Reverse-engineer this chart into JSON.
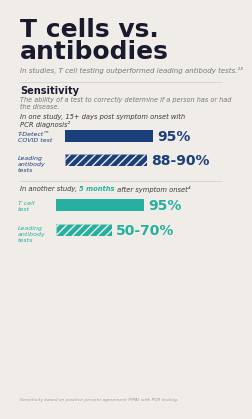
{
  "bg_color": "#f0ede8",
  "title_line1": "T cells vs.",
  "title_line2": "antibodies",
  "subtitle": "In studies, T cell testing outperformed leading antibody tests.¹³",
  "sensitivity_header": "Sensitivity",
  "sensitivity_desc": "The ability of a test to correctly determine if a person has or had\nthe disease.",
  "study1_label": "In one study, 15+ days post symptom onset with\nPCR diagnosis²",
  "study1_bars": [
    {
      "label_line1": "T-Detect™",
      "label_line2": "COVID test",
      "value": 95,
      "max_val": 95,
      "color": "#1b3f7a",
      "pct_text": "95%",
      "hatched": false
    },
    {
      "label_line1": "Leading",
      "label_line2": "antibody",
      "label_line3": "tests",
      "value": 89,
      "max_val": 95,
      "color": "#1b3f7a",
      "pct_text": "88-90%",
      "hatched": true
    }
  ],
  "study2_label_before": "In another study, ",
  "study2_highlight": "5 months",
  "study2_label_after": " after symptom onset⁴",
  "study2_highlight_color": "#27b0a0",
  "study2_bars": [
    {
      "label_line1": "T cell",
      "label_line2": "test",
      "value": 95,
      "max_val": 95,
      "color": "#27b0a0",
      "pct_text": "95%",
      "hatched": false
    },
    {
      "label_line1": "Leading",
      "label_line2": "antibody",
      "label_line3": "tests",
      "value": 60,
      "max_val": 95,
      "color": "#27b0a0",
      "pct_text": "50-70%",
      "hatched": true
    }
  ],
  "footnote": "Sensitivity based on positive percent agreement (PPA) with PCR testing.",
  "title_color": "#1a1a2e",
  "text_color": "#3a3a3a",
  "label_color_dark": "#1b3f7a",
  "label_color_teal": "#27b0a0"
}
